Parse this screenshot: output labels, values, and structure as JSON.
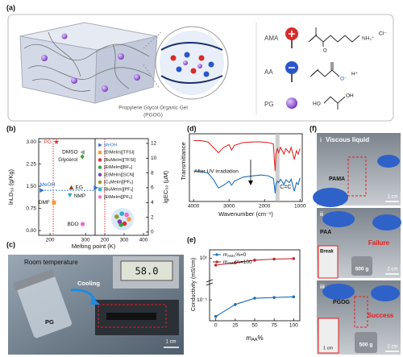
{
  "a": {
    "label": "(a)",
    "gel_name": "Propylene Glycol Organic Gel",
    "gel_abbr": "(PGOG)",
    "components": [
      {
        "name": "AMA",
        "groups": [
          "O",
          "NH₃⁺",
          "Cl⁻"
        ]
      },
      {
        "name": "AA",
        "groups": [
          "O⁻",
          "H⁺"
        ]
      },
      {
        "name": "PG",
        "groups": [
          "HO",
          "OH"
        ]
      }
    ]
  },
  "b": {
    "label": "(b)",
    "y_label": "lnLD₅₀ (g/Kg)",
    "y2_label": "lgEC₅₀ (μM)",
    "x_label": "Melting point (K)",
    "left": {
      "xlim": [
        168,
        327
      ],
      "xticks": [
        200,
        300
      ],
      "ylim": [
        -0.16,
        3.11
      ],
      "yticks": [
        {
          "value": 0,
          "label": "0.00"
        },
        {
          "value": 0.75,
          "label": "0.75"
        },
        {
          "value": 1.5,
          "label": "1.50"
        },
        {
          "value": 2.25,
          "label": "2.25"
        },
        {
          "value": 3,
          "label": "3.00"
        }
      ],
      "threshold_x": 209,
      "points": [
        {
          "name": "PG",
          "x": 218,
          "y": 3.0,
          "marker": "star",
          "color": "#e8312f"
        },
        {
          "name": "DMSO",
          "x": 292,
          "y": 2.65,
          "marker": "triangle-left",
          "color": "#9a9a9a"
        },
        {
          "name": "Glycerol",
          "x": 291,
          "y": 2.5,
          "marker": "diamond",
          "color": "#3aa53a"
        },
        {
          "name": "MeOH",
          "x": 176,
          "y": 1.36,
          "marker": "triangle-right",
          "color": "#2a6fc9"
        },
        {
          "name": "EG",
          "x": 260,
          "y": 1.45,
          "marker": "triangle-up",
          "color": "#8b4513"
        },
        {
          "name": "NMP",
          "x": 256,
          "y": 1.2,
          "marker": "triangle-down",
          "color": "#3aa6c8"
        },
        {
          "name": "DMF",
          "x": 211,
          "y": 0.95,
          "marker": "square",
          "color": "#f39c3a"
        },
        {
          "name": "BDO",
          "x": 292,
          "y": 0.22,
          "marker": "circle",
          "color": "#f06cc8"
        }
      ]
    },
    "right": {
      "xlim": [
        150,
        425
      ],
      "xticks": [
        200,
        300,
        400
      ],
      "ylim": [
        -0.44,
        12.65
      ],
      "yticks": [
        0,
        2,
        4,
        6,
        8,
        10,
        12
      ],
      "threshold_x": 200,
      "points": [
        {
          "name": "MeOH",
          "x": 153,
          "y": 6,
          "marker": "triangle-right",
          "color": "#2a6fc9"
        }
      ],
      "legend": [
        {
          "name": "MeOH",
          "marker": "triangle-right",
          "color": "#2a6fc9"
        },
        {
          "name": "[EtMeIm][TFSI]",
          "marker": "square",
          "color": "#f39c3a"
        },
        {
          "name": "[BuMeIm][TFSI]",
          "marker": "circle",
          "color": "#e03030"
        },
        {
          "name": "[EtMeIm][BF₄]",
          "marker": "circle",
          "color": "#3aa53a"
        },
        {
          "name": "[EtMeIm][SCN]",
          "marker": "circle",
          "color": "#7b3fb0"
        },
        {
          "name": "[C₆MeIm][PF₆]",
          "marker": "circle",
          "color": "#9a9a2a"
        },
        {
          "name": "[BuMeIm][PF₆]",
          "marker": "circle",
          "color": "#2ab0c8"
        },
        {
          "name": "[EtMeIm][PF₆]",
          "marker": "circle",
          "color": "#f06cc8"
        }
      ]
    }
  },
  "c": {
    "label": "(c)",
    "condition": "Room temperature",
    "action": "Cooling",
    "sample": "PG",
    "display": "58.0",
    "scale": "1 cm"
  },
  "d": {
    "label": "(d)",
    "y_label": "Transmittance",
    "x_label": "Wavenumber (cm⁻¹)",
    "xlim": [
      4117,
      937
    ],
    "xticks": [
      4000,
      3000,
      2000,
      1000
    ],
    "ylim": [
      0,
      1
    ],
    "x": [
      4000,
      3800,
      3600,
      3450,
      3300,
      3150,
      3000,
      2930,
      2850,
      2600,
      2300,
      2100,
      1900,
      1750,
      1720,
      1700,
      1680,
      1640,
      1600,
      1550,
      1450,
      1400,
      1300,
      1250,
      1160,
      1100,
      1050,
      1000
    ],
    "series": [
      {
        "color": "#e02b2b",
        "values": [
          0.9,
          0.9,
          0.88,
          0.8,
          0.72,
          0.8,
          0.84,
          0.76,
          0.83,
          0.87,
          0.88,
          0.88,
          0.87,
          0.85,
          0.6,
          0.45,
          0.7,
          0.78,
          0.72,
          0.8,
          0.7,
          0.78,
          0.72,
          0.8,
          0.62,
          0.75,
          0.7,
          0.78
        ]
      },
      {
        "color": "#1f6fb5",
        "values": [
          0.45,
          0.44,
          0.42,
          0.33,
          0.2,
          0.24,
          0.3,
          0.24,
          0.3,
          0.36,
          0.38,
          0.39,
          0.38,
          0.34,
          0.22,
          0.12,
          0.25,
          0.3,
          0.28,
          0.33,
          0.25,
          0.32,
          0.28,
          0.33,
          0.15,
          0.28,
          0.25,
          0.35
        ]
      }
    ],
    "annotations": [
      {
        "text": "After UV irradiation"
      },
      {
        "text": "C=C",
        "x": 1635
      }
    ]
  },
  "e": {
    "label": "(e)",
    "y_label": "Conductivity (mS/cm)",
    "x_label": {
      "base": "m",
      "sub": "AA",
      "rest": "%"
    },
    "xlim": [
      -8,
      108
    ],
    "xticks": [
      0,
      25,
      50,
      75,
      100
    ],
    "ylim": [
      0.01,
      25
    ],
    "ylog": true,
    "yticks": [
      {
        "value": 0.1,
        "label": "10⁻¹"
      },
      {
        "value": 10,
        "label": "10¹"
      }
    ],
    "x": [
      0,
      25,
      50,
      75,
      100
    ],
    "series": [
      {
        "name": {
          "base": "m",
          "sub": "AMA",
          "rest": "%=0"
        },
        "color": "#1f6fb5",
        "values": [
          0.016,
          0.06,
          0.12,
          0.13,
          0.14
        ]
      },
      {
        "name": {
          "base": "m",
          "sub": "AMA",
          "rest": "%=100"
        },
        "color": "#c0282b",
        "values": [
          4.6,
          6.0,
          8.0,
          9.0,
          9.5
        ]
      }
    ]
  },
  "f": {
    "label": "(f)",
    "rows": [
      {
        "index": "i",
        "caption": "Viscous liquid",
        "sample": "PAMA",
        "scale": "1 cm"
      },
      {
        "index": "ii",
        "sample": "PAA",
        "caption": "Failure",
        "inset": "Break",
        "weight": "500 g",
        "scale": "2 cm"
      },
      {
        "index": "iii",
        "sample": "PGOG",
        "caption": "Success",
        "weight": "500 g",
        "scale": "2 cm",
        "inset_scale": "1 cm"
      }
    ]
  }
}
